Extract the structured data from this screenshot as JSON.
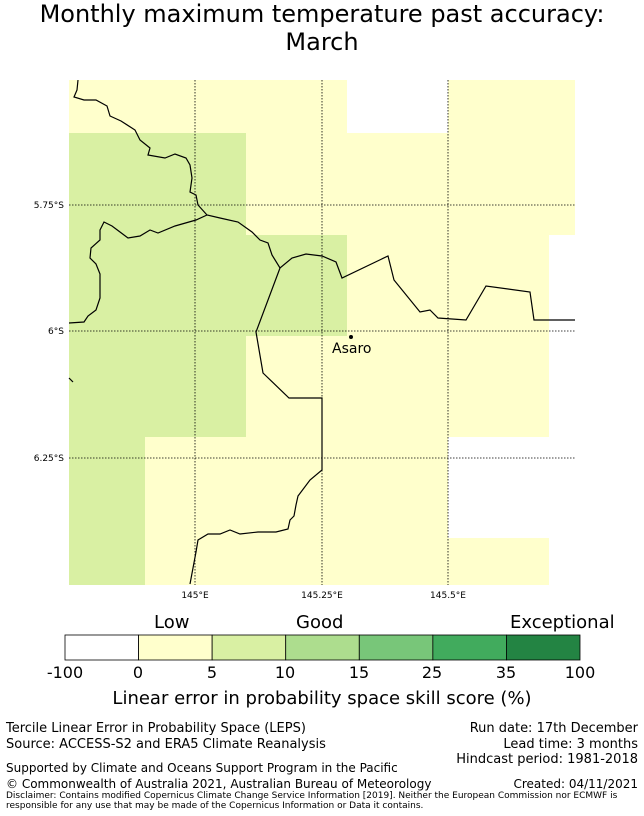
{
  "title_line1": "Monthly maximum temperature past accuracy:",
  "title_line2": "March",
  "map": {
    "place_label": "Asaro",
    "lat_labels": [
      "5.75°S",
      "6°S",
      "6.25°S"
    ],
    "lon_labels": [
      "145°E",
      "145.25°E",
      "145.5°E"
    ]
  },
  "colorbar": {
    "words": [
      "Low",
      "Good",
      "Exceptional"
    ],
    "ticks": [
      "-100",
      "0",
      "5",
      "10",
      "15",
      "25",
      "35",
      "100"
    ],
    "colors": [
      "#ffffff",
      "#ffffcc",
      "#d9f0a3",
      "#addd8e",
      "#78c679",
      "#41ab5d",
      "#238443"
    ],
    "label": "Linear error in probability space skill score (%)"
  },
  "footer": {
    "method": "Tercile Linear Error in Probability Space (LEPS)",
    "source": "Source: ACCESS-S2 and ERA5 Climate Reanalysis",
    "run_date": "Run date: 17th December",
    "lead_time": "Lead time: 3 months",
    "hindcast": "Hindcast period: 1981-2018",
    "supported": "Supported by Climate and Oceans Support Program in the Pacific",
    "copyright": "© Commonwealth of Australia 2021, Australian Bureau of Meteorology",
    "created": "Created: 04/11/2021",
    "disclaimer1": "Disclaimer: Contains modified Copernicus Climate Change Service Information [2019]. Neither the European Commission nor ECMWF is",
    "disclaimer2": "responsible for any use that may be made of the Copernicus Information or Data it contains."
  }
}
